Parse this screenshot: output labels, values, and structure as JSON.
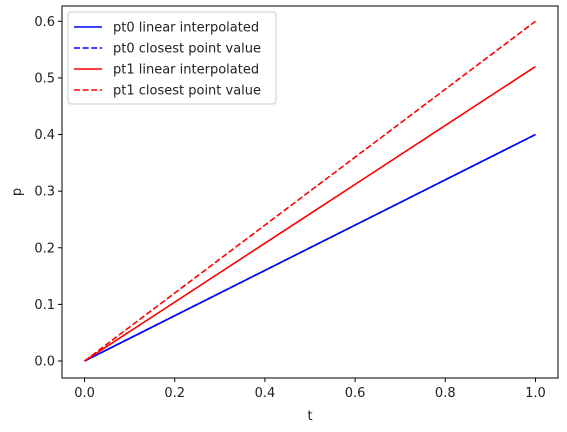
{
  "chart_data": {
    "type": "line",
    "xlabel": "t",
    "ylabel": "p",
    "xlim": [
      -0.05,
      1.05
    ],
    "ylim": [
      -0.03,
      0.627
    ],
    "x_ticks": [
      0.0,
      0.2,
      0.4,
      0.6,
      0.8,
      1.0
    ],
    "x_tick_labels": [
      "0.0",
      "0.2",
      "0.4",
      "0.6",
      "0.8",
      "1.0"
    ],
    "y_ticks": [
      0.0,
      0.1,
      0.2,
      0.3,
      0.4,
      0.5,
      0.6
    ],
    "y_tick_labels": [
      "0.0",
      "0.1",
      "0.2",
      "0.3",
      "0.4",
      "0.5",
      "0.6"
    ],
    "grid": false,
    "legend_position": "upper-left",
    "series": [
      {
        "name": "pt0 linear interpolated",
        "color": "#0000ff",
        "dash": "solid",
        "x": [
          0.0,
          1.0
        ],
        "y": [
          0.0,
          0.4
        ]
      },
      {
        "name": "pt0 closest point value",
        "color": "#0000ff",
        "dash": "dashed",
        "x": [
          0.0,
          1.0
        ],
        "y": [
          0.0,
          0.4
        ]
      },
      {
        "name": "pt1 linear interpolated",
        "color": "#ff0000",
        "dash": "solid",
        "x": [
          0.0,
          1.0
        ],
        "y": [
          0.0,
          0.52
        ]
      },
      {
        "name": "pt1 closest point value",
        "color": "#ff0000",
        "dash": "dashed",
        "x": [
          0.0,
          1.0
        ],
        "y": [
          0.0,
          0.6
        ]
      }
    ]
  }
}
